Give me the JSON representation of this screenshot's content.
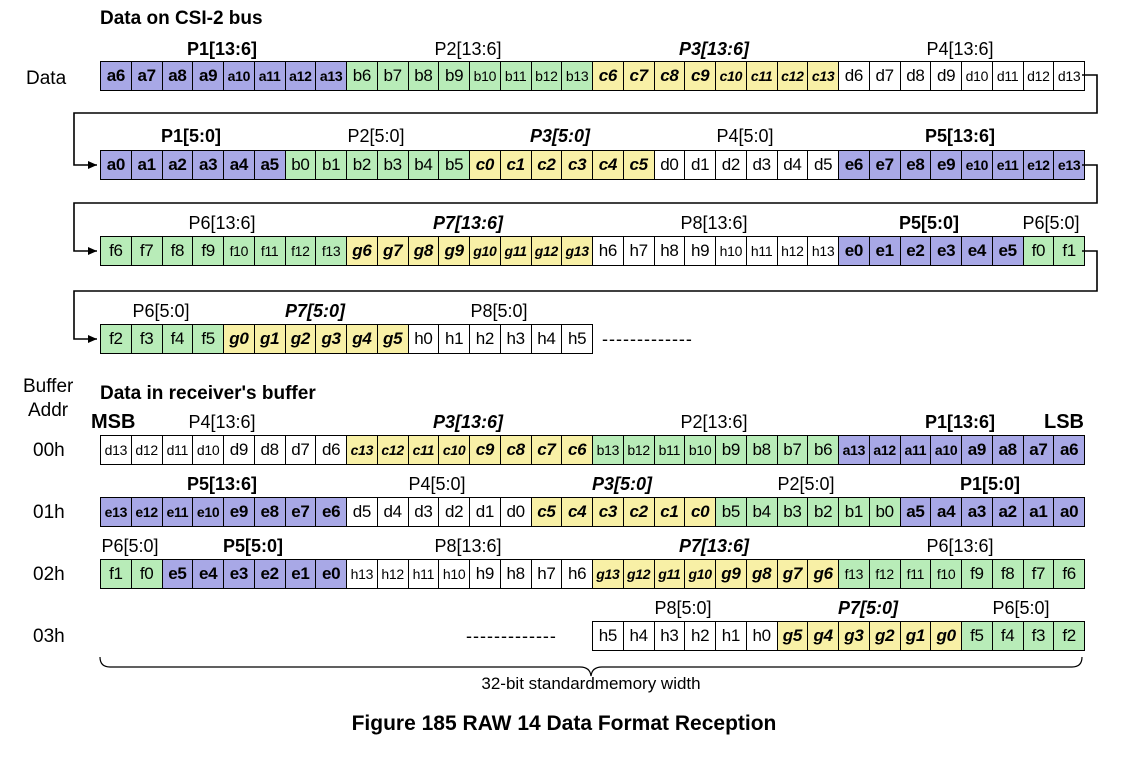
{
  "headings": {
    "bus": "Data on CSI-2 bus",
    "buffer": "Data in receiver's buffer",
    "data_row": "Data",
    "buffer_addr_line1": "Buffer",
    "buffer_addr_line2": "Addr",
    "msb": "MSB",
    "lsb": "LSB",
    "brace_caption": "32-bit standardmemory width",
    "figure_title": "Figure 185 RAW 14 Data Format Reception",
    "dashes": "-------------"
  },
  "colors": {
    "P1_P5_blue": "#a8a8e6",
    "P2_P6_green": "#b8ecb8",
    "P3_P7_yellow": "#f8f0a6",
    "P4_P8_white": "#ffffff"
  },
  "bus_rows": [
    {
      "groups": [
        {
          "label": "P1[13:6]",
          "style": "b"
        },
        {
          "label": "P2[13:6]",
          "style": ""
        },
        {
          "label": "P3[13:6]",
          "style": "bi"
        },
        {
          "label": "P4[13:6]",
          "style": ""
        }
      ],
      "cells": [
        {
          "t": "a6",
          "c": "p1"
        },
        {
          "t": "a7",
          "c": "p1"
        },
        {
          "t": "a8",
          "c": "p1"
        },
        {
          "t": "a9",
          "c": "p1"
        },
        {
          "t": "a10",
          "c": "p1"
        },
        {
          "t": "a11",
          "c": "p1"
        },
        {
          "t": "a12",
          "c": "p1"
        },
        {
          "t": "a13",
          "c": "p1"
        },
        {
          "t": "b6",
          "c": "p2"
        },
        {
          "t": "b7",
          "c": "p2"
        },
        {
          "t": "b8",
          "c": "p2"
        },
        {
          "t": "b9",
          "c": "p2"
        },
        {
          "t": "b10",
          "c": "p2"
        },
        {
          "t": "b11",
          "c": "p2"
        },
        {
          "t": "b12",
          "c": "p2"
        },
        {
          "t": "b13",
          "c": "p2"
        },
        {
          "t": "c6",
          "c": "p3"
        },
        {
          "t": "c7",
          "c": "p3"
        },
        {
          "t": "c8",
          "c": "p3"
        },
        {
          "t": "c9",
          "c": "p3"
        },
        {
          "t": "c10",
          "c": "p3"
        },
        {
          "t": "c11",
          "c": "p3"
        },
        {
          "t": "c12",
          "c": "p3"
        },
        {
          "t": "c13",
          "c": "p3"
        },
        {
          "t": "d6",
          "c": "p4"
        },
        {
          "t": "d7",
          "c": "p4"
        },
        {
          "t": "d8",
          "c": "p4"
        },
        {
          "t": "d9",
          "c": "p4"
        },
        {
          "t": "d10",
          "c": "p4"
        },
        {
          "t": "d11",
          "c": "p4"
        },
        {
          "t": "d12",
          "c": "p4"
        },
        {
          "t": "d13",
          "c": "p4"
        }
      ]
    },
    {
      "groups": [
        {
          "label": "P1[5:0]",
          "style": "b"
        },
        {
          "label": "P2[5:0]",
          "style": ""
        },
        {
          "label": "P3[5:0]",
          "style": "bi"
        },
        {
          "label": "P4[5:0]",
          "style": ""
        },
        {
          "label": "P5[13:6]",
          "style": "b"
        }
      ],
      "cells": [
        {
          "t": "a0",
          "c": "p1"
        },
        {
          "t": "a1",
          "c": "p1"
        },
        {
          "t": "a2",
          "c": "p1"
        },
        {
          "t": "a3",
          "c": "p1"
        },
        {
          "t": "a4",
          "c": "p1"
        },
        {
          "t": "a5",
          "c": "p1"
        },
        {
          "t": "b0",
          "c": "p2"
        },
        {
          "t": "b1",
          "c": "p2"
        },
        {
          "t": "b2",
          "c": "p2"
        },
        {
          "t": "b3",
          "c": "p2"
        },
        {
          "t": "b4",
          "c": "p2"
        },
        {
          "t": "b5",
          "c": "p2"
        },
        {
          "t": "c0",
          "c": "p3"
        },
        {
          "t": "c1",
          "c": "p3"
        },
        {
          "t": "c2",
          "c": "p3"
        },
        {
          "t": "c3",
          "c": "p3"
        },
        {
          "t": "c4",
          "c": "p3"
        },
        {
          "t": "c5",
          "c": "p3"
        },
        {
          "t": "d0",
          "c": "p4"
        },
        {
          "t": "d1",
          "c": "p4"
        },
        {
          "t": "d2",
          "c": "p4"
        },
        {
          "t": "d3",
          "c": "p4"
        },
        {
          "t": "d4",
          "c": "p4"
        },
        {
          "t": "d5",
          "c": "p4"
        },
        {
          "t": "e6",
          "c": "p1"
        },
        {
          "t": "e7",
          "c": "p1"
        },
        {
          "t": "e8",
          "c": "p1"
        },
        {
          "t": "e9",
          "c": "p1"
        },
        {
          "t": "e10",
          "c": "p1"
        },
        {
          "t": "e11",
          "c": "p1"
        },
        {
          "t": "e12",
          "c": "p1"
        },
        {
          "t": "e13",
          "c": "p1"
        }
      ]
    },
    {
      "groups": [
        {
          "label": "P6[13:6]",
          "style": ""
        },
        {
          "label": "P7[13:6]",
          "style": "bi"
        },
        {
          "label": "P8[13:6]",
          "style": ""
        },
        {
          "label": "P5[5:0]",
          "style": "b"
        },
        {
          "label": "P6[5:0]",
          "style": ""
        }
      ],
      "cells": [
        {
          "t": "f6",
          "c": "p2"
        },
        {
          "t": "f7",
          "c": "p2"
        },
        {
          "t": "f8",
          "c": "p2"
        },
        {
          "t": "f9",
          "c": "p2"
        },
        {
          "t": "f10",
          "c": "p2"
        },
        {
          "t": "f11",
          "c": "p2"
        },
        {
          "t": "f12",
          "c": "p2"
        },
        {
          "t": "f13",
          "c": "p2"
        },
        {
          "t": "g6",
          "c": "p3"
        },
        {
          "t": "g7",
          "c": "p3"
        },
        {
          "t": "g8",
          "c": "p3"
        },
        {
          "t": "g9",
          "c": "p3"
        },
        {
          "t": "g10",
          "c": "p3"
        },
        {
          "t": "g11",
          "c": "p3"
        },
        {
          "t": "g12",
          "c": "p3"
        },
        {
          "t": "g13",
          "c": "p3"
        },
        {
          "t": "h6",
          "c": "p4"
        },
        {
          "t": "h7",
          "c": "p4"
        },
        {
          "t": "h8",
          "c": "p4"
        },
        {
          "t": "h9",
          "c": "p4"
        },
        {
          "t": "h10",
          "c": "p4"
        },
        {
          "t": "h11",
          "c": "p4"
        },
        {
          "t": "h12",
          "c": "p4"
        },
        {
          "t": "h13",
          "c": "p4"
        },
        {
          "t": "e0",
          "c": "p1"
        },
        {
          "t": "e1",
          "c": "p1"
        },
        {
          "t": "e2",
          "c": "p1"
        },
        {
          "t": "e3",
          "c": "p1"
        },
        {
          "t": "e4",
          "c": "p1"
        },
        {
          "t": "e5",
          "c": "p1"
        },
        {
          "t": "f0",
          "c": "p2"
        },
        {
          "t": "f1",
          "c": "p2"
        }
      ]
    },
    {
      "groups": [
        {
          "label": "P6[5:0]",
          "style": ""
        },
        {
          "label": "P7[5:0]",
          "style": "bi"
        },
        {
          "label": "P8[5:0]",
          "style": ""
        }
      ],
      "cells": [
        {
          "t": "f2",
          "c": "p2"
        },
        {
          "t": "f3",
          "c": "p2"
        },
        {
          "t": "f4",
          "c": "p2"
        },
        {
          "t": "f5",
          "c": "p2"
        },
        {
          "t": "g0",
          "c": "p3"
        },
        {
          "t": "g1",
          "c": "p3"
        },
        {
          "t": "g2",
          "c": "p3"
        },
        {
          "t": "g3",
          "c": "p3"
        },
        {
          "t": "g4",
          "c": "p3"
        },
        {
          "t": "g5",
          "c": "p3"
        },
        {
          "t": "h0",
          "c": "p4"
        },
        {
          "t": "h1",
          "c": "p4"
        },
        {
          "t": "h2",
          "c": "p4"
        },
        {
          "t": "h3",
          "c": "p4"
        },
        {
          "t": "h4",
          "c": "p4"
        },
        {
          "t": "h5",
          "c": "p4"
        }
      ]
    }
  ],
  "buffer_rows": [
    {
      "addr": "00h",
      "groups": [
        {
          "label": "P4[13:6]",
          "style": ""
        },
        {
          "label": "P3[13:6]",
          "style": "bi"
        },
        {
          "label": "P2[13:6]",
          "style": ""
        },
        {
          "label": "P1[13:6]",
          "style": "b"
        }
      ],
      "cells": [
        {
          "t": "d13",
          "c": "p4"
        },
        {
          "t": "d12",
          "c": "p4"
        },
        {
          "t": "d11",
          "c": "p4"
        },
        {
          "t": "d10",
          "c": "p4"
        },
        {
          "t": "d9",
          "c": "p4"
        },
        {
          "t": "d8",
          "c": "p4"
        },
        {
          "t": "d7",
          "c": "p4"
        },
        {
          "t": "d6",
          "c": "p4"
        },
        {
          "t": "c13",
          "c": "p3"
        },
        {
          "t": "c12",
          "c": "p3"
        },
        {
          "t": "c11",
          "c": "p3"
        },
        {
          "t": "c10",
          "c": "p3"
        },
        {
          "t": "c9",
          "c": "p3"
        },
        {
          "t": "c8",
          "c": "p3"
        },
        {
          "t": "c7",
          "c": "p3"
        },
        {
          "t": "c6",
          "c": "p3"
        },
        {
          "t": "b13",
          "c": "p2"
        },
        {
          "t": "b12",
          "c": "p2"
        },
        {
          "t": "b11",
          "c": "p2"
        },
        {
          "t": "b10",
          "c": "p2"
        },
        {
          "t": "b9",
          "c": "p2"
        },
        {
          "t": "b8",
          "c": "p2"
        },
        {
          "t": "b7",
          "c": "p2"
        },
        {
          "t": "b6",
          "c": "p2"
        },
        {
          "t": "a13",
          "c": "p1"
        },
        {
          "t": "a12",
          "c": "p1"
        },
        {
          "t": "a11",
          "c": "p1"
        },
        {
          "t": "a10",
          "c": "p1"
        },
        {
          "t": "a9",
          "c": "p1"
        },
        {
          "t": "a8",
          "c": "p1"
        },
        {
          "t": "a7",
          "c": "p1"
        },
        {
          "t": "a6",
          "c": "p1"
        }
      ]
    },
    {
      "addr": "01h",
      "groups": [
        {
          "label": "P5[13:6]",
          "style": "b"
        },
        {
          "label": "P4[5:0]",
          "style": ""
        },
        {
          "label": "P3[5:0]",
          "style": "bi"
        },
        {
          "label": "P2[5:0]",
          "style": ""
        },
        {
          "label": "P1[5:0]",
          "style": "b"
        }
      ],
      "cells": [
        {
          "t": "e13",
          "c": "p1"
        },
        {
          "t": "e12",
          "c": "p1"
        },
        {
          "t": "e11",
          "c": "p1"
        },
        {
          "t": "e10",
          "c": "p1"
        },
        {
          "t": "e9",
          "c": "p1"
        },
        {
          "t": "e8",
          "c": "p1"
        },
        {
          "t": "e7",
          "c": "p1"
        },
        {
          "t": "e6",
          "c": "p1"
        },
        {
          "t": "d5",
          "c": "p4"
        },
        {
          "t": "d4",
          "c": "p4"
        },
        {
          "t": "d3",
          "c": "p4"
        },
        {
          "t": "d2",
          "c": "p4"
        },
        {
          "t": "d1",
          "c": "p4"
        },
        {
          "t": "d0",
          "c": "p4"
        },
        {
          "t": "c5",
          "c": "p3"
        },
        {
          "t": "c4",
          "c": "p3"
        },
        {
          "t": "c3",
          "c": "p3"
        },
        {
          "t": "c2",
          "c": "p3"
        },
        {
          "t": "c1",
          "c": "p3"
        },
        {
          "t": "c0",
          "c": "p3"
        },
        {
          "t": "b5",
          "c": "p2"
        },
        {
          "t": "b4",
          "c": "p2"
        },
        {
          "t": "b3",
          "c": "p2"
        },
        {
          "t": "b2",
          "c": "p2"
        },
        {
          "t": "b1",
          "c": "p2"
        },
        {
          "t": "b0",
          "c": "p2"
        },
        {
          "t": "a5",
          "c": "p1"
        },
        {
          "t": "a4",
          "c": "p1"
        },
        {
          "t": "a3",
          "c": "p1"
        },
        {
          "t": "a2",
          "c": "p1"
        },
        {
          "t": "a1",
          "c": "p1"
        },
        {
          "t": "a0",
          "c": "p1"
        }
      ]
    },
    {
      "addr": "02h",
      "groups": [
        {
          "label": "P6[5:0]",
          "style": ""
        },
        {
          "label": "P5[5:0]",
          "style": "b"
        },
        {
          "label": "P8[13:6]",
          "style": ""
        },
        {
          "label": "P7[13:6]",
          "style": "bi"
        },
        {
          "label": "P6[13:6]",
          "style": ""
        }
      ],
      "cells": [
        {
          "t": "f1",
          "c": "p2"
        },
        {
          "t": "f0",
          "c": "p2"
        },
        {
          "t": "e5",
          "c": "p1"
        },
        {
          "t": "e4",
          "c": "p1"
        },
        {
          "t": "e3",
          "c": "p1"
        },
        {
          "t": "e2",
          "c": "p1"
        },
        {
          "t": "e1",
          "c": "p1"
        },
        {
          "t": "e0",
          "c": "p1"
        },
        {
          "t": "h13",
          "c": "p4"
        },
        {
          "t": "h12",
          "c": "p4"
        },
        {
          "t": "h11",
          "c": "p4"
        },
        {
          "t": "h10",
          "c": "p4"
        },
        {
          "t": "h9",
          "c": "p4"
        },
        {
          "t": "h8",
          "c": "p4"
        },
        {
          "t": "h7",
          "c": "p4"
        },
        {
          "t": "h6",
          "c": "p4"
        },
        {
          "t": "g13",
          "c": "p3"
        },
        {
          "t": "g12",
          "c": "p3"
        },
        {
          "t": "g11",
          "c": "p3"
        },
        {
          "t": "g10",
          "c": "p3"
        },
        {
          "t": "g9",
          "c": "p3"
        },
        {
          "t": "g8",
          "c": "p3"
        },
        {
          "t": "g7",
          "c": "p3"
        },
        {
          "t": "g6",
          "c": "p3"
        },
        {
          "t": "f13",
          "c": "p2"
        },
        {
          "t": "f12",
          "c": "p2"
        },
        {
          "t": "f11",
          "c": "p2"
        },
        {
          "t": "f10",
          "c": "p2"
        },
        {
          "t": "f9",
          "c": "p2"
        },
        {
          "t": "f8",
          "c": "p2"
        },
        {
          "t": "f7",
          "c": "p2"
        },
        {
          "t": "f6",
          "c": "p2"
        }
      ]
    },
    {
      "addr": "03h",
      "groups": [
        {
          "label": "P8[5:0]",
          "style": ""
        },
        {
          "label": "P7[5:0]",
          "style": "bi"
        },
        {
          "label": "P6[5:0]",
          "style": ""
        }
      ],
      "cells": [
        {
          "t": "h5",
          "c": "p4"
        },
        {
          "t": "h4",
          "c": "p4"
        },
        {
          "t": "h3",
          "c": "p4"
        },
        {
          "t": "h2",
          "c": "p4"
        },
        {
          "t": "h1",
          "c": "p4"
        },
        {
          "t": "h0",
          "c": "p4"
        },
        {
          "t": "g5",
          "c": "p3"
        },
        {
          "t": "g4",
          "c": "p3"
        },
        {
          "t": "g3",
          "c": "p3"
        },
        {
          "t": "g2",
          "c": "p3"
        },
        {
          "t": "g1",
          "c": "p3"
        },
        {
          "t": "g0",
          "c": "p3"
        },
        {
          "t": "f5",
          "c": "p2"
        },
        {
          "t": "f4",
          "c": "p2"
        },
        {
          "t": "f3",
          "c": "p2"
        },
        {
          "t": "f2",
          "c": "p2"
        }
      ]
    }
  ]
}
